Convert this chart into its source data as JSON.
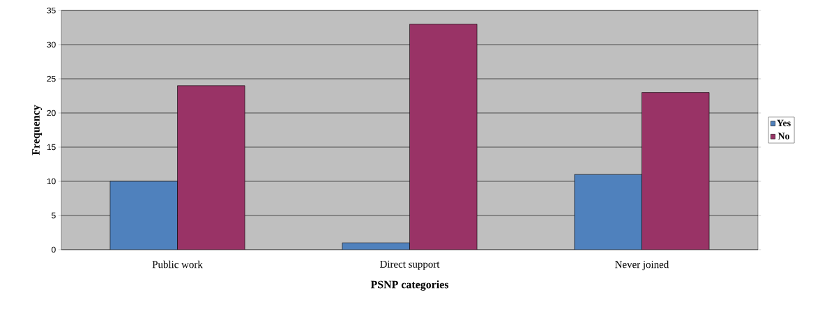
{
  "chart_data": {
    "type": "bar",
    "xlabel": "PSNP categories",
    "ylabel": "Frequency",
    "categories": [
      "Public work",
      "Direct support",
      "Never joined"
    ],
    "series": [
      {
        "name": "Yes",
        "color": "#4f81bd",
        "values": [
          10,
          1,
          11
        ]
      },
      {
        "name": "No",
        "color": "#993366",
        "values": [
          24,
          33,
          23
        ]
      }
    ],
    "ylim": [
      0,
      35
    ],
    "yticks": [
      0,
      5,
      10,
      15,
      20,
      25,
      30,
      35
    ],
    "grid": "y",
    "legend": "right"
  }
}
